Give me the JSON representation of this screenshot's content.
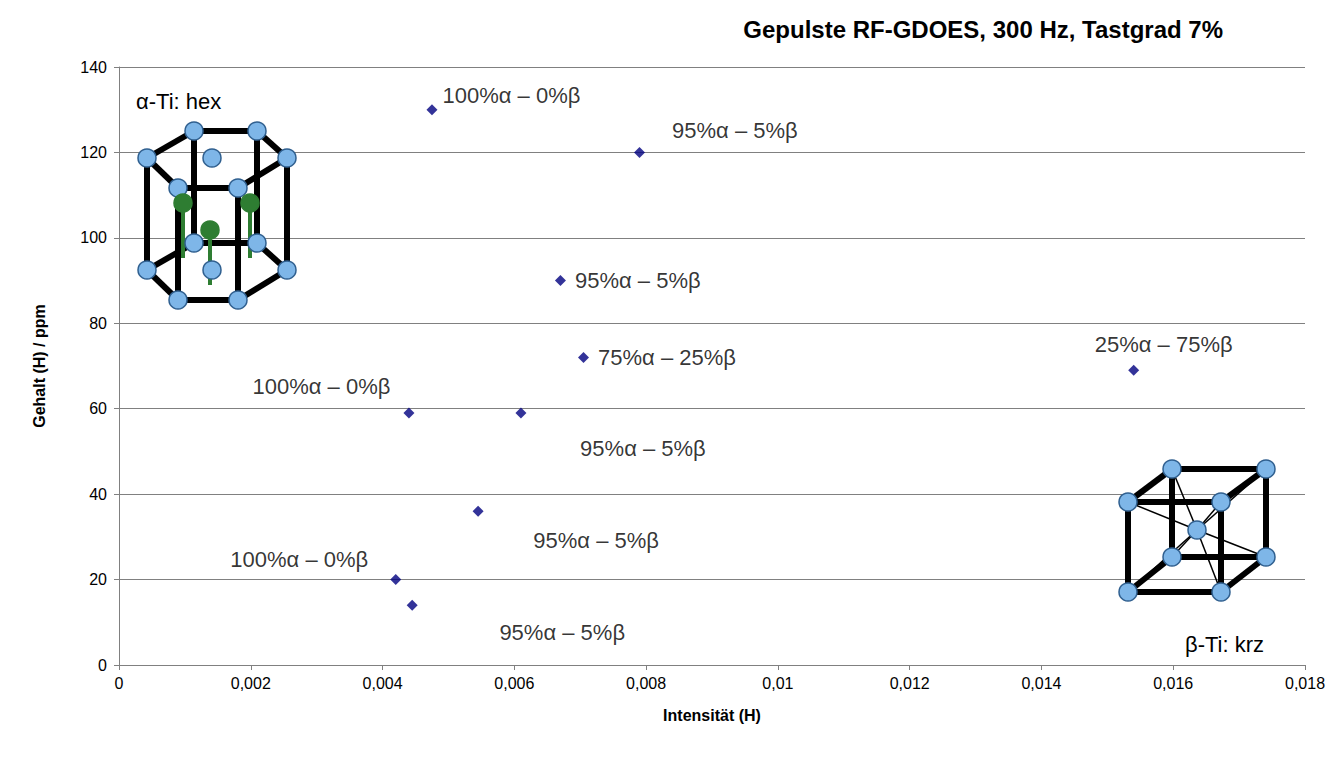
{
  "chart_data": {
    "type": "scatter",
    "title": "Gepulste RF-GDOES, 300 Hz, Tastgrad 7%",
    "x_label": "Intensität (H)",
    "y_label": "Gehalt (H) / ppm",
    "x": [
      0.00475,
      0.0079,
      0.0067,
      0.00705,
      0.0154,
      0.0044,
      0.0061,
      0.00545,
      0.0042,
      0.00445
    ],
    "values": [
      130,
      120,
      90,
      72,
      69,
      59,
      59,
      36,
      20,
      14
    ],
    "labels": [
      "100%α – 0%β",
      "95%α – 5%β",
      "95%α – 5%β",
      "75%α – 25%β",
      "25%α – 75%β",
      "100%α – 0%β",
      "95%α – 5%β",
      "95%α – 5%β",
      "100%α – 0%β",
      "95%α – 5%β"
    ],
    "color": "#000080",
    "marker": "diamond",
    "annotations": [
      "α-Ti: hex",
      "β-Ti: krz"
    ],
    "xlim": [
      0,
      0.018
    ],
    "xticks": [
      0,
      {
        "value": 0.002,
        "label": "0,002"
      },
      {
        "value": 0.004,
        "label": "0,004"
      },
      {
        "value": 0.006,
        "label": "0,006"
      },
      {
        "value": 0.008,
        "label": "0,008"
      },
      {
        "value": 0.01,
        "label": "0,01"
      },
      {
        "value": 0.012,
        "label": "0,012"
      },
      {
        "value": 0.014,
        "label": "0,014"
      },
      {
        "value": 0.016,
        "label": "0,016"
      },
      {
        "value": 0.018,
        "label": "0,018"
      }
    ],
    "ylim": [
      0,
      140
    ],
    "yticks": [
      0,
      20,
      40,
      60,
      80,
      100,
      120,
      140
    ],
    "grid": "y"
  }
}
